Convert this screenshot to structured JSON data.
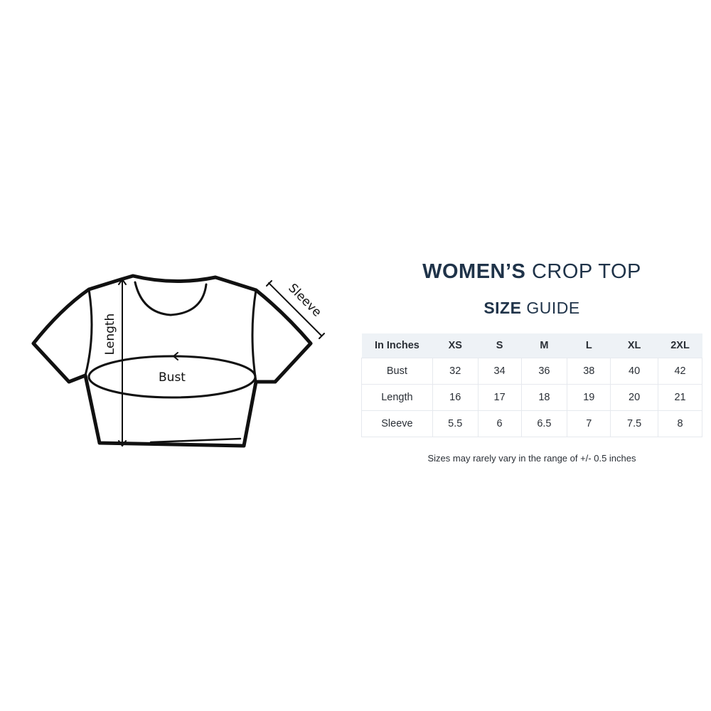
{
  "diagram": {
    "labels": {
      "length": "Length",
      "bust": "Bust",
      "sleeve": "Sleeve"
    }
  },
  "title": {
    "bold": "WOMEN’S",
    "light": "CROP TOP"
  },
  "subtitle": {
    "bold": "SIZE",
    "light": "GUIDE"
  },
  "table": {
    "headers": [
      "In Inches",
      "XS",
      "S",
      "M",
      "L",
      "XL",
      "2XL"
    ],
    "rows": [
      [
        "Bust",
        "32",
        "34",
        "36",
        "38",
        "40",
        "42"
      ],
      [
        "Length",
        "16",
        "17",
        "18",
        "19",
        "20",
        "21"
      ],
      [
        "Sleeve",
        "5.5",
        "6",
        "6.5",
        "7",
        "7.5",
        "8"
      ]
    ]
  },
  "note": "Sizes may rarely vary in the range of +/- 0.5 inches",
  "colors": {
    "title": "#1f3349",
    "header_bg": "#eef2f6"
  }
}
